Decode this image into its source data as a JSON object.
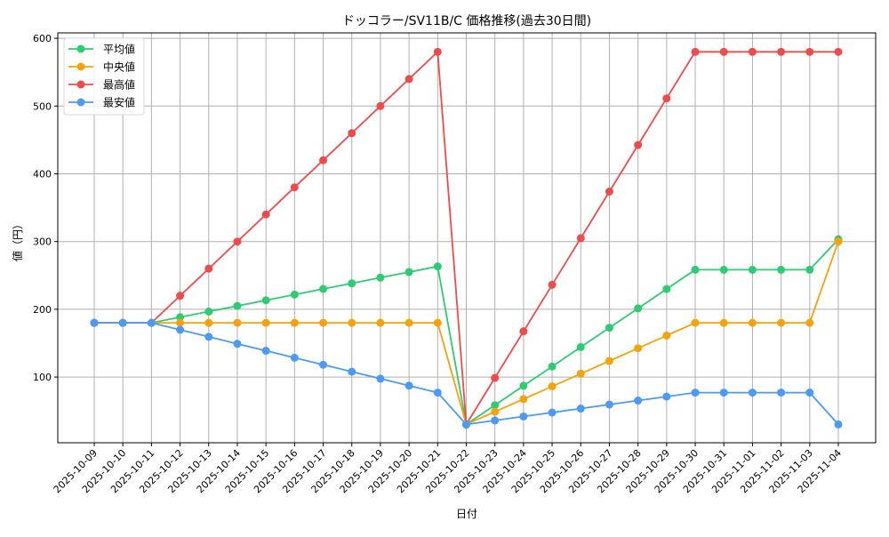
{
  "chart_data": {
    "type": "line",
    "title": "ドッコラー/SV11B/C 価格推移(過去30日間)",
    "xlabel": "日付",
    "ylabel": "値（円）",
    "ylim": [
      3,
      608
    ],
    "yticks": [
      100,
      200,
      300,
      400,
      500,
      600
    ],
    "grid": true,
    "legend_position": "upper left",
    "categories": [
      "2025-10-09",
      "2025-10-10",
      "2025-10-11",
      "2025-10-12",
      "2025-10-13",
      "2025-10-14",
      "2025-10-15",
      "2025-10-16",
      "2025-10-17",
      "2025-10-18",
      "2025-10-19",
      "2025-10-20",
      "2025-10-21",
      "2025-10-22",
      "2025-10-23",
      "2025-10-24",
      "2025-10-25",
      "2025-10-26",
      "2025-10-27",
      "2025-10-28",
      "2025-10-29",
      "2025-10-30",
      "2025-10-31",
      "2025-11-01",
      "2025-11-02",
      "2025-11-03",
      "2025-11-04"
    ],
    "series": [
      {
        "name": "平均値",
        "color": "#2ecc71",
        "values": [
          180,
          180,
          180,
          188.3,
          196.7,
          205,
          213.3,
          221.7,
          230,
          238.3,
          246.7,
          255,
          263.3,
          30,
          58.5,
          87.1,
          115.6,
          144.2,
          172.8,
          201.3,
          229.9,
          258.4,
          258.4,
          258.4,
          258.4,
          258.4,
          303.3
        ]
      },
      {
        "name": "中央値",
        "color": "#f5a30a",
        "values": [
          180,
          180,
          180,
          180,
          180,
          180,
          180,
          180,
          180,
          180,
          180,
          180,
          180,
          30,
          48.75,
          67.5,
          86.25,
          105,
          123.75,
          142.5,
          161.25,
          180,
          180,
          180,
          180,
          180,
          300
        ]
      },
      {
        "name": "最高値",
        "color": "#f04b4b",
        "values": [
          180,
          180,
          180,
          220,
          260,
          300,
          340,
          380,
          420,
          460,
          500,
          540,
          580,
          30,
          98.75,
          167.5,
          236.25,
          305,
          373.75,
          442.5,
          511.25,
          580,
          580,
          580,
          580,
          580,
          580
        ]
      },
      {
        "name": "最安値",
        "color": "#4b9bf5",
        "values": [
          180,
          180,
          180,
          169.7,
          159.4,
          149.1,
          138.8,
          128.5,
          118.2,
          107.9,
          97.6,
          87.3,
          77,
          30,
          35.9,
          41.8,
          47.6,
          53.5,
          59.4,
          65.3,
          71.1,
          77,
          77,
          77,
          77,
          77,
          30
        ]
      }
    ]
  }
}
